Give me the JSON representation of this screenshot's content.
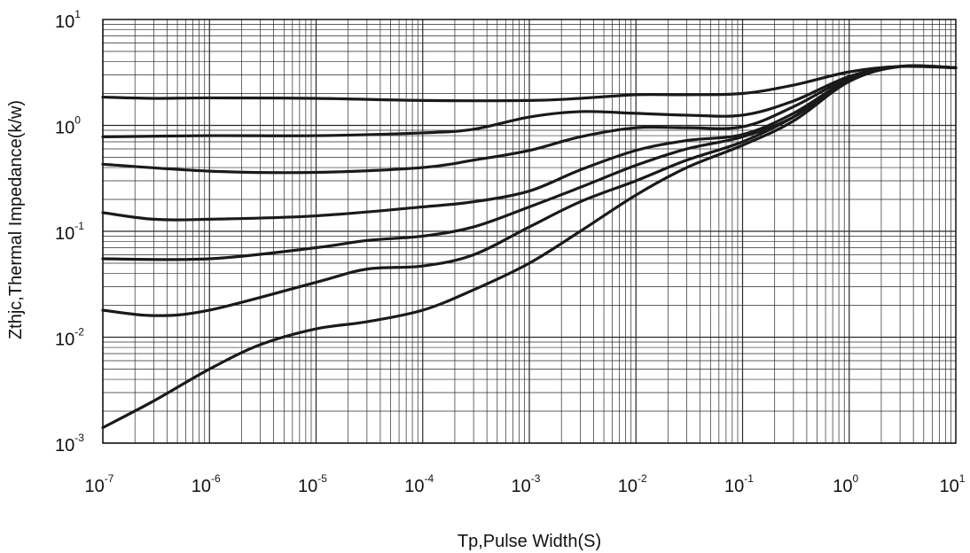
{
  "chart_data": {
    "type": "line",
    "xlabel": "Tp,Pulse Width(S)",
    "ylabel": "Zthjc,Thermal Impedance(k/w)",
    "xscale": "log",
    "yscale": "log",
    "xlim": [
      1e-07,
      10
    ],
    "ylim": [
      0.001,
      10
    ],
    "grid": true,
    "x_tick_labels": [
      {
        "base": "10",
        "exp": "-7"
      },
      {
        "base": "10",
        "exp": "-6"
      },
      {
        "base": "10",
        "exp": "-5"
      },
      {
        "base": "10",
        "exp": "-4"
      },
      {
        "base": "10",
        "exp": "-3"
      },
      {
        "base": "10",
        "exp": "-2"
      },
      {
        "base": "10",
        "exp": "-1"
      },
      {
        "base": "10",
        "exp": "0"
      },
      {
        "base": "10",
        "exp": "1"
      }
    ],
    "y_tick_labels": [
      {
        "base": "10",
        "exp": "1"
      },
      {
        "base": "10",
        "exp": "0"
      },
      {
        "base": "10",
        "exp": "-1"
      },
      {
        "base": "10",
        "exp": "-2"
      },
      {
        "base": "10",
        "exp": "-3"
      }
    ],
    "series": [
      {
        "x": [
          1e-07,
          3e-07,
          1e-06,
          1e-05,
          0.0001,
          0.001,
          0.003,
          0.01,
          0.03,
          0.1,
          0.3,
          1,
          3,
          10
        ],
        "y": [
          1.85,
          1.8,
          1.82,
          1.8,
          1.72,
          1.72,
          1.8,
          1.95,
          1.95,
          2.0,
          2.4,
          3.2,
          3.6,
          3.5
        ]
      },
      {
        "x": [
          1e-07,
          1e-06,
          1e-05,
          0.0001,
          0.0003,
          0.001,
          0.003,
          0.01,
          0.03,
          0.1,
          0.3,
          1,
          3,
          10
        ],
        "y": [
          0.78,
          0.8,
          0.8,
          0.85,
          0.92,
          1.2,
          1.35,
          1.3,
          1.25,
          1.25,
          1.7,
          2.9,
          3.6,
          3.5
        ]
      },
      {
        "x": [
          1e-07,
          1e-06,
          1e-05,
          0.0001,
          0.0003,
          0.001,
          0.003,
          0.01,
          0.03,
          0.1,
          0.3,
          1,
          3,
          10
        ],
        "y": [
          0.43,
          0.37,
          0.36,
          0.4,
          0.47,
          0.58,
          0.78,
          0.95,
          0.95,
          0.97,
          1.5,
          2.8,
          3.6,
          3.5
        ]
      },
      {
        "x": [
          1e-07,
          3e-07,
          1e-06,
          1e-05,
          0.0001,
          0.0003,
          0.001,
          0.003,
          0.01,
          0.03,
          0.1,
          0.3,
          1,
          3,
          10
        ],
        "y": [
          0.15,
          0.13,
          0.13,
          0.14,
          0.17,
          0.19,
          0.24,
          0.38,
          0.58,
          0.72,
          0.82,
          1.3,
          2.7,
          3.6,
          3.5
        ]
      },
      {
        "x": [
          1e-07,
          1e-06,
          1e-05,
          3e-05,
          0.0001,
          0.0003,
          0.001,
          0.003,
          0.01,
          0.03,
          0.1,
          0.3,
          1,
          3,
          10
        ],
        "y": [
          0.055,
          0.055,
          0.07,
          0.082,
          0.09,
          0.11,
          0.17,
          0.26,
          0.42,
          0.6,
          0.78,
          1.2,
          2.7,
          3.6,
          3.5
        ]
      },
      {
        "x": [
          1e-07,
          3e-07,
          1e-06,
          1e-05,
          3e-05,
          0.0001,
          0.0003,
          0.001,
          0.003,
          0.01,
          0.03,
          0.1,
          0.3,
          1,
          3,
          10
        ],
        "y": [
          0.018,
          0.016,
          0.018,
          0.033,
          0.044,
          0.047,
          0.06,
          0.11,
          0.19,
          0.3,
          0.47,
          0.7,
          1.2,
          2.7,
          3.6,
          3.5
        ]
      },
      {
        "x": [
          1e-07,
          3e-07,
          1e-06,
          3e-06,
          1e-05,
          3e-05,
          0.0001,
          0.0003,
          0.001,
          0.003,
          0.01,
          0.03,
          0.1,
          0.3,
          1,
          3,
          10
        ],
        "y": [
          0.0014,
          0.0025,
          0.005,
          0.0085,
          0.012,
          0.014,
          0.018,
          0.028,
          0.05,
          0.1,
          0.22,
          0.4,
          0.65,
          1.1,
          2.6,
          3.6,
          3.5
        ]
      }
    ],
    "line_color": "#1a1a1a",
    "grid_color": "#2a2a2a"
  }
}
